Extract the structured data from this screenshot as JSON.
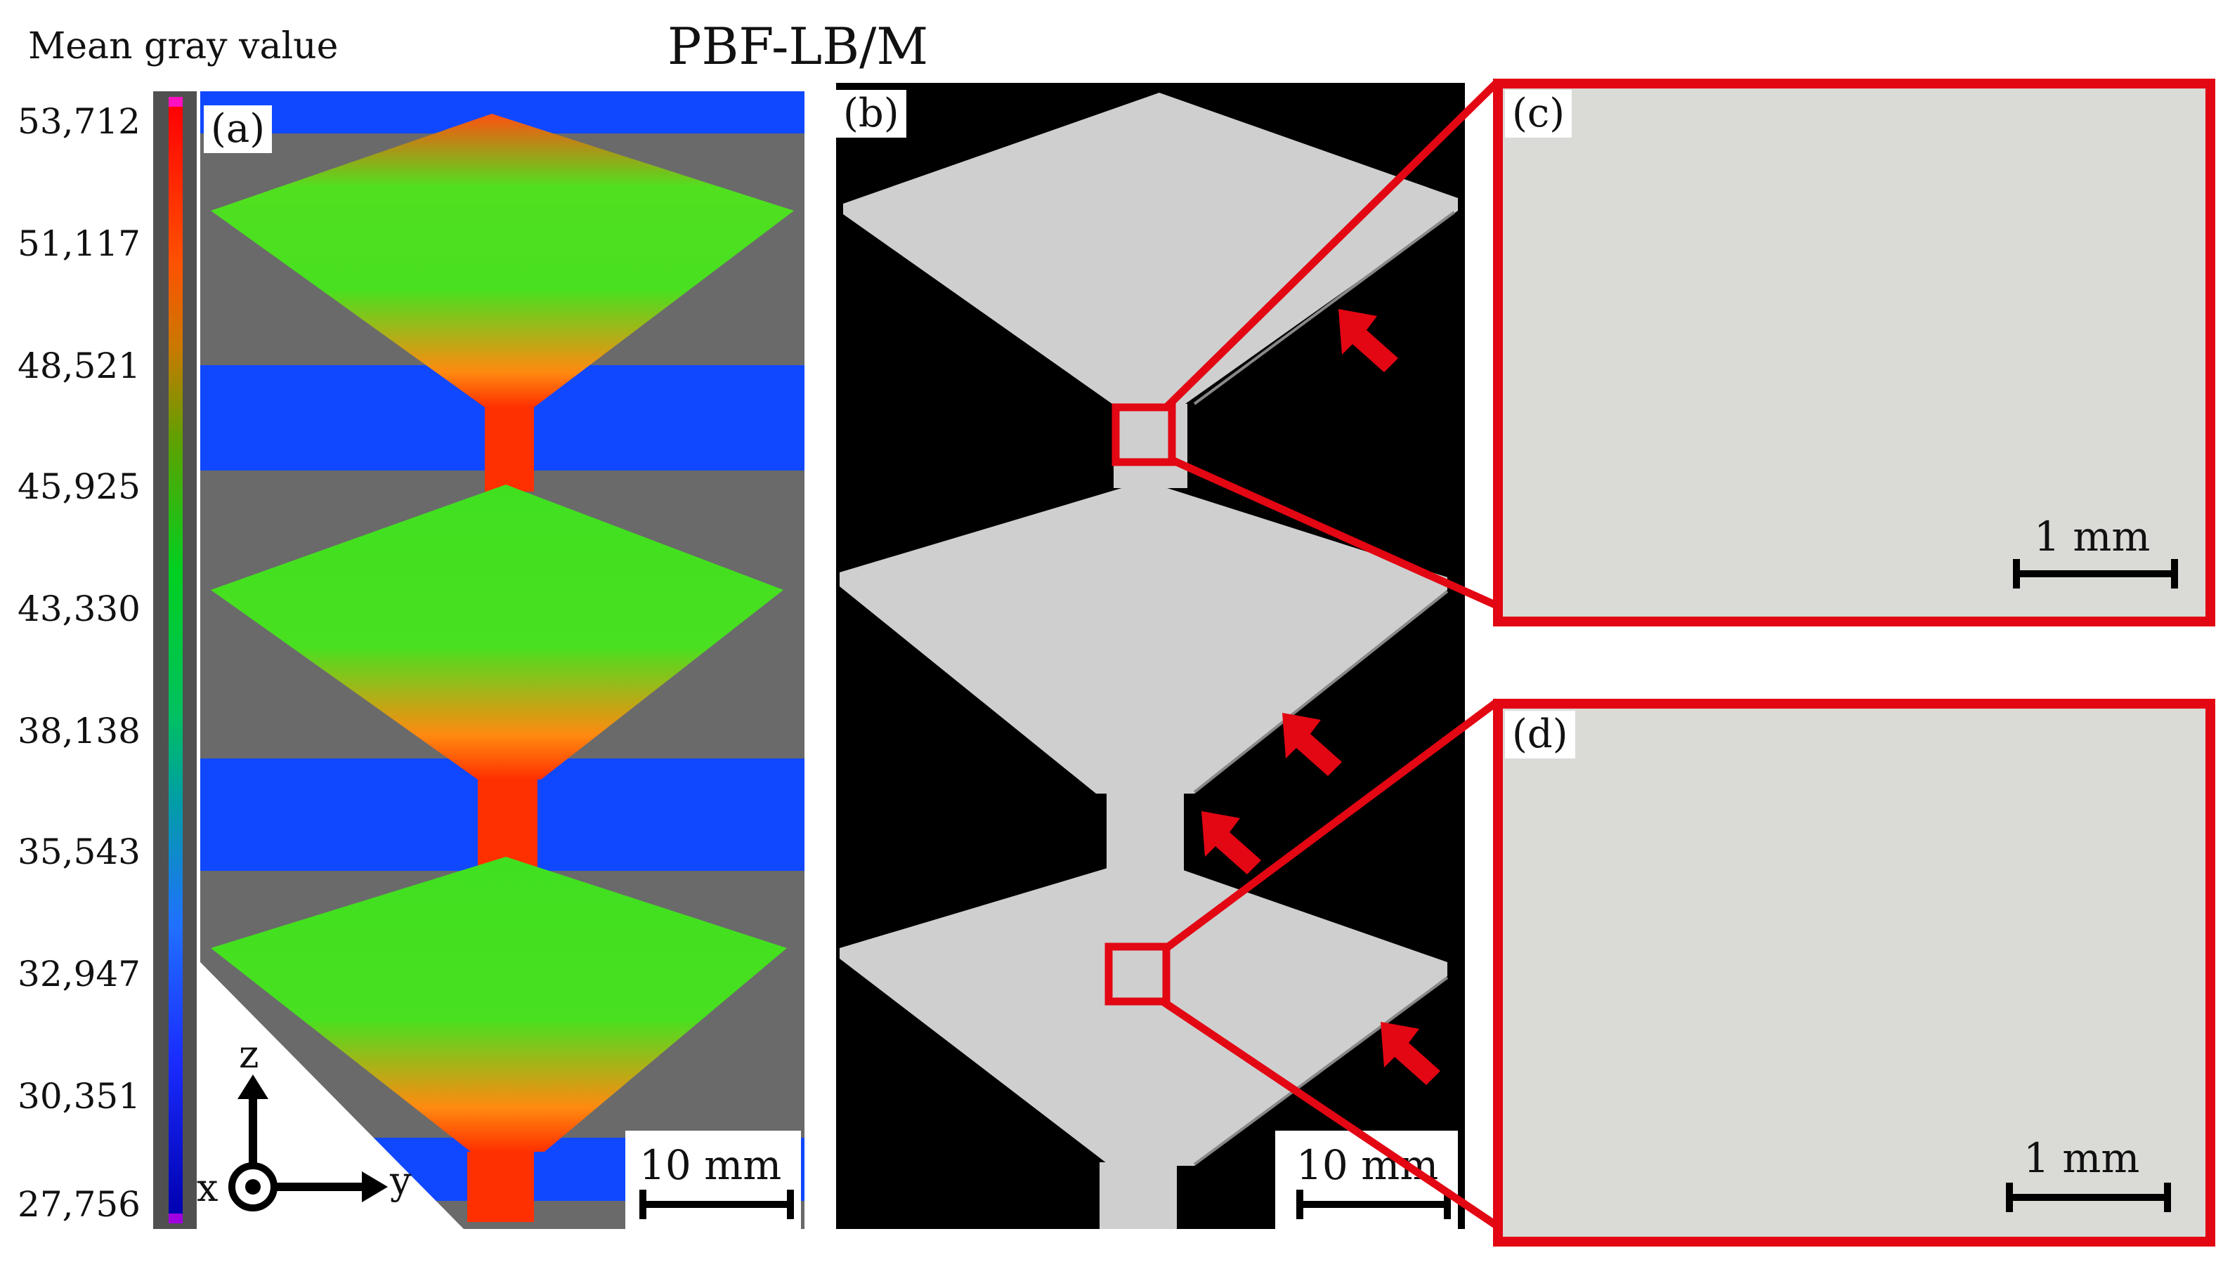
{
  "header": {
    "colorbar_title": "Mean gray value",
    "figure_title": "PBF-LB/M"
  },
  "colorbar": {
    "ticks": [
      "53,712",
      "51,117",
      "48,521",
      "45,925",
      "43,330",
      "38,138",
      "35,543",
      "32,947",
      "30,351",
      "27,756"
    ],
    "colors": [
      "#ff0000",
      "#ff7f00",
      "#00cc33",
      "#00b0b0",
      "#1e50ff",
      "#0000c8"
    ]
  },
  "panels": {
    "a": {
      "label": "(a)",
      "scale": "10 mm"
    },
    "b": {
      "label": "(b)",
      "scale": "10 mm"
    },
    "c": {
      "label": "(c)",
      "scale": "1 mm"
    },
    "d": {
      "label": "(d)",
      "scale": "1 mm"
    }
  },
  "axes": {
    "z": "z",
    "x": "x",
    "y": "y"
  },
  "colors": {
    "highlight": "#e30613",
    "ct_green": "#40e020",
    "ct_red": "#ff3000",
    "ct_blue": "#1048ff",
    "ct_background": "#6a6a6a",
    "segmented_part": "#cfcfcf",
    "micrograph": "#dadad6"
  }
}
